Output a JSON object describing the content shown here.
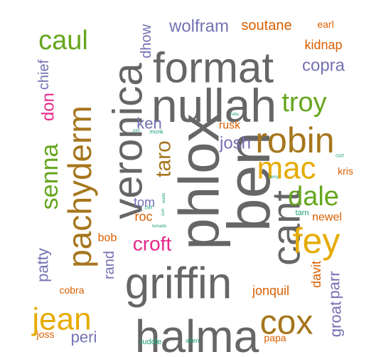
{
  "colors": {
    "gray": "#666666",
    "olive": "#a6761d",
    "purple": "#7570b3",
    "orange": "#d95f02",
    "green": "#66a61e",
    "yellow": "#e6ab02",
    "pink": "#e7298a",
    "teal": "#1b9e77"
  },
  "words": [
    {
      "text": "ben",
      "color": "gray"
    },
    {
      "text": "phlox",
      "color": "gray"
    },
    {
      "text": "halma",
      "color": "gray"
    },
    {
      "text": "griffin",
      "color": "gray"
    },
    {
      "text": "nullah",
      "color": "gray"
    },
    {
      "text": "veronica",
      "color": "gray"
    },
    {
      "text": "format",
      "color": "gray"
    },
    {
      "text": "cant",
      "color": "gray"
    },
    {
      "text": "pachyderm",
      "color": "olive"
    },
    {
      "text": "cox",
      "color": "olive"
    },
    {
      "text": "robin",
      "color": "olive"
    },
    {
      "text": "fey",
      "color": "yellow"
    },
    {
      "text": "jean",
      "color": "yellow"
    },
    {
      "text": "mac",
      "color": "yellow"
    },
    {
      "text": "caul",
      "color": "green"
    },
    {
      "text": "troy",
      "color": "green"
    },
    {
      "text": "dale",
      "color": "green"
    },
    {
      "text": "senna",
      "color": "green"
    },
    {
      "text": "taro",
      "color": "olive"
    },
    {
      "text": "croft",
      "color": "pink"
    },
    {
      "text": "don",
      "color": "pink"
    },
    {
      "text": "wolfram",
      "color": "purple"
    },
    {
      "text": "copra",
      "color": "purple"
    },
    {
      "text": "josh",
      "color": "purple"
    },
    {
      "text": "ken",
      "color": "purple"
    },
    {
      "text": "tom",
      "color": "purple"
    },
    {
      "text": "dhow",
      "color": "purple"
    },
    {
      "text": "chief",
      "color": "purple"
    },
    {
      "text": "patty",
      "color": "purple"
    },
    {
      "text": "rand",
      "color": "purple"
    },
    {
      "text": "peri",
      "color": "purple"
    },
    {
      "text": "groat",
      "color": "purple"
    },
    {
      "text": "parr",
      "color": "purple"
    },
    {
      "text": "soutane",
      "color": "orange"
    },
    {
      "text": "kidnap",
      "color": "orange"
    },
    {
      "text": "earl",
      "color": "orange"
    },
    {
      "text": "rusk",
      "color": "orange"
    },
    {
      "text": "roc",
      "color": "orange"
    },
    {
      "text": "bob",
      "color": "orange"
    },
    {
      "text": "newel",
      "color": "orange"
    },
    {
      "text": "kris",
      "color": "orange"
    },
    {
      "text": "jonquil",
      "color": "orange"
    },
    {
      "text": "davit",
      "color": "orange"
    },
    {
      "text": "cobra",
      "color": "orange"
    },
    {
      "text": "joss",
      "color": "orange"
    },
    {
      "text": "papa",
      "color": "orange"
    },
    {
      "text": "tarn",
      "color": "teal"
    },
    {
      "text": "ruddle",
      "color": "teal"
    },
    {
      "text": "alien",
      "color": "teal"
    },
    {
      "text": "zebu",
      "color": "teal"
    },
    {
      "text": "pim",
      "color": "teal"
    },
    {
      "text": "monk",
      "color": "teal"
    },
    {
      "text": "curt",
      "color": "teal"
    },
    {
      "text": "perry",
      "color": "teal"
    },
    {
      "text": "clef",
      "color": "teal"
    },
    {
      "text": "wade",
      "color": "teal"
    },
    {
      "text": "curt",
      "color": "teal"
    },
    {
      "text": "tornado",
      "color": "teal"
    }
  ]
}
